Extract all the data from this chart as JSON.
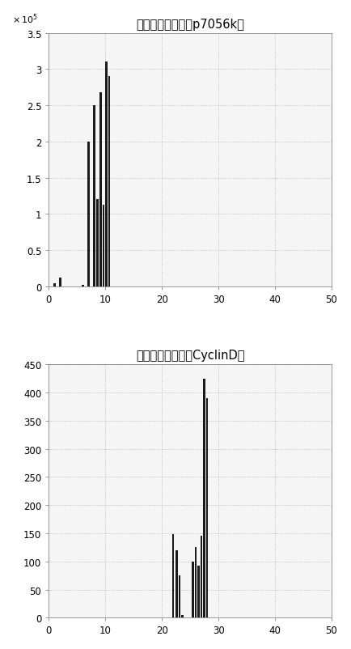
{
  "chart1": {
    "title": "参数敏感性分析（p7056k）",
    "xlim": [
      0,
      50
    ],
    "ylim": [
      0,
      350000
    ],
    "yticks": [
      0,
      50000,
      100000,
      150000,
      200000,
      250000,
      300000,
      350000
    ],
    "ytick_labels": [
      "0",
      "0.5",
      "1",
      "1.5",
      "2",
      "2.5",
      "3",
      "3.5"
    ],
    "xticks": [
      0,
      10,
      20,
      30,
      40,
      50
    ],
    "bar_positions": [
      1,
      2,
      6,
      7,
      8,
      8.6,
      9.2,
      9.7,
      10.2,
      10.7
    ],
    "bar_heights": [
      4000,
      12000,
      1500,
      200000,
      250000,
      120000,
      268000,
      113000,
      310000,
      290000
    ],
    "bar_width": 0.35,
    "bar_color": "#1a1a1a"
  },
  "chart2": {
    "title": "参数敏感性分析（CyclinD）",
    "xlim": [
      0,
      50
    ],
    "ylim": [
      0,
      450
    ],
    "yticks": [
      0,
      50,
      100,
      150,
      200,
      250,
      300,
      350,
      400,
      450
    ],
    "xticks": [
      0,
      10,
      20,
      30,
      40,
      50
    ],
    "bar_positions": [
      22.0,
      22.6,
      23.1,
      23.6,
      25.5,
      26.0,
      26.5,
      27.0,
      27.5,
      28.0
    ],
    "bar_heights": [
      148,
      120,
      75,
      5,
      100,
      125,
      92,
      145,
      425,
      390
    ],
    "bar_width": 0.35,
    "bar_color": "#1a1a1a"
  },
  "fig_bg": "#ffffff",
  "axes_bg": "#f5f5f5",
  "title_fontsize": 10.5,
  "tick_fontsize": 8.5
}
